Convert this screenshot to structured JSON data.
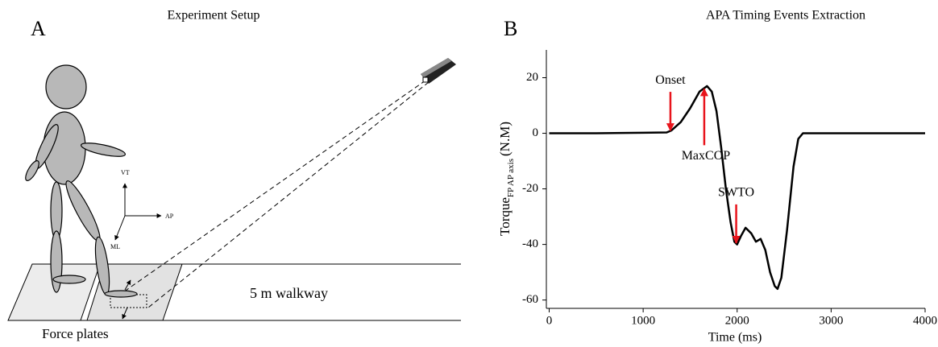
{
  "diagram": {
    "panel_label": "A",
    "title": "Experiment Setup",
    "axis_vt": "VT",
    "axis_ap": "AP",
    "axis_ml": "ML",
    "walkway": "5 m walkway",
    "force_plates": "Force plates"
  },
  "chart_data": {
    "type": "line",
    "panel_label": "B",
    "title": "APA Timing Events Extraction",
    "x_label": "Time (ms)",
    "y_label": "Torque",
    "y_label_sub": "FP AP axis",
    "y_label_unit": "(N.M)",
    "x": [
      0,
      500,
      1000,
      1250,
      1300,
      1400,
      1500,
      1600,
      1680,
      1730,
      1780,
      1830,
      1880,
      1930,
      1970,
      2000,
      2040,
      2090,
      2150,
      2200,
      2250,
      2300,
      2350,
      2400,
      2430,
      2470,
      2530,
      2600,
      2650,
      2700,
      3000,
      4000
    ],
    "values": [
      0,
      0,
      0.2,
      0.3,
      1,
      4,
      9,
      15,
      17,
      15,
      8,
      -5,
      -20,
      -32,
      -39,
      -40,
      -37,
      -34,
      -36,
      -39,
      -38,
      -42,
      -50,
      -55,
      -56,
      -52,
      -35,
      -12,
      -2,
      0,
      0,
      0
    ],
    "color": "#000000",
    "xlim": [
      -30,
      4000
    ],
    "xticks": [
      0,
      1000,
      2000,
      3000,
      4000
    ],
    "ylim": [
      -63,
      30
    ],
    "yticks": [
      -60,
      -40,
      -20,
      0,
      20
    ],
    "annotations": [
      {
        "text": "Onset",
        "x": 1290,
        "y": 1,
        "direction": "down"
      },
      {
        "text": "MaxCOP",
        "x": 1650,
        "y": 16,
        "direction": "up"
      },
      {
        "text": "SWTO",
        "x": 1990,
        "y": -39.5,
        "direction": "down"
      }
    ],
    "annotation_color": "#e8141c"
  }
}
